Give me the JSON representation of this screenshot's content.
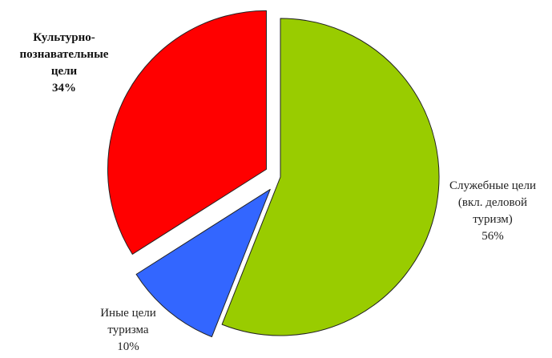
{
  "chart_data": {
    "type": "pie",
    "title": "",
    "slices": [
      {
        "label_lines": [
          "Служебные цели",
          "(вкл. деловой",
          "туризм)"
        ],
        "value_label": "56%",
        "value": 56,
        "color": "#99cc00",
        "exploded": false,
        "label_bold": false
      },
      {
        "label_lines": [
          "Иные цели",
          "туризма"
        ],
        "value_label": "10%",
        "value": 10,
        "color": "#3366ff",
        "exploded": true,
        "label_bold": false
      },
      {
        "label_lines": [
          "Культурно-",
          "познавательные",
          "цели"
        ],
        "value_label": "34%",
        "value": 34,
        "color": "#ff0000",
        "exploded": true,
        "label_bold": true
      }
    ],
    "start_angle_deg": 0,
    "direction": "clockwise",
    "legend": "none"
  }
}
